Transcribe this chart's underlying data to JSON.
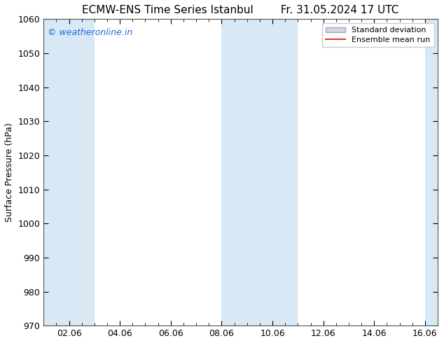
{
  "title": "ECMW-ENS Time Series Istanbul",
  "title_right": "Fr. 31.05.2024 17 UTC",
  "ylabel": "Surface Pressure (hPa)",
  "ylim": [
    970,
    1060
  ],
  "yticks": [
    970,
    980,
    990,
    1000,
    1010,
    1020,
    1030,
    1040,
    1050,
    1060
  ],
  "xlim": [
    0.0,
    15.5
  ],
  "xtick_positions": [
    1.0,
    3.0,
    5.0,
    7.0,
    9.0,
    11.0,
    13.0,
    15.0
  ],
  "xtick_labels": [
    "02.06",
    "04.06",
    "06.06",
    "08.06",
    "10.06",
    "12.06",
    "14.06",
    "16.06"
  ],
  "watermark": "© weatheronline.in",
  "watermark_color": "#1a6ed8",
  "background_color": "#ffffff",
  "plot_bg_color": "#ffffff",
  "legend_std_label": "Standard deviation",
  "legend_mean_label": "Ensemble mean run",
  "legend_std_color": "#d0d8e8",
  "legend_std_edge": "#aaaaaa",
  "legend_mean_color": "#ee3333",
  "shaded_bands": [
    {
      "x_start": 0.0,
      "x_end": 2.0
    },
    {
      "x_start": 7.0,
      "x_end": 10.0
    },
    {
      "x_start": 15.0,
      "x_end": 15.5
    }
  ],
  "shade_color": "#d8e8f5",
  "title_fontsize": 11,
  "ylabel_fontsize": 9,
  "tick_fontsize": 9,
  "watermark_fontsize": 9,
  "legend_fontsize": 8
}
